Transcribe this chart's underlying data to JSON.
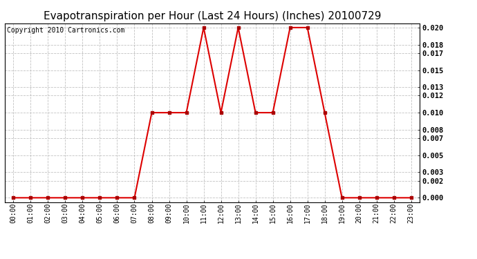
{
  "title": "Evapotranspiration per Hour (Last 24 Hours) (Inches) 20100729",
  "copyright": "Copyright 2010 Cartronics.com",
  "hours": [
    "00:00",
    "01:00",
    "02:00",
    "03:00",
    "04:00",
    "05:00",
    "06:00",
    "07:00",
    "08:00",
    "09:00",
    "10:00",
    "11:00",
    "12:00",
    "13:00",
    "14:00",
    "15:00",
    "16:00",
    "17:00",
    "18:00",
    "19:00",
    "20:00",
    "21:00",
    "22:00",
    "23:00"
  ],
  "values": [
    0.0,
    0.0,
    0.0,
    0.0,
    0.0,
    0.0,
    0.0,
    0.0,
    0.01,
    0.01,
    0.01,
    0.02,
    0.01,
    0.02,
    0.01,
    0.01,
    0.02,
    0.02,
    0.01,
    0.0,
    0.0,
    0.0,
    0.0,
    0.0
  ],
  "yticks": [
    0.0,
    0.002,
    0.003,
    0.005,
    0.007,
    0.008,
    0.01,
    0.012,
    0.013,
    0.015,
    0.017,
    0.018,
    0.02
  ],
  "ylim": [
    -0.0005,
    0.0205
  ],
  "xlim": [
    -0.5,
    23.5
  ],
  "line_color": "#dd0000",
  "marker_color": "#aa0000",
  "grid_color": "#bbbbbb",
  "bg_color": "#ffffff",
  "title_fontsize": 11,
  "copyright_fontsize": 7,
  "tick_fontsize": 7,
  "ytick_fontsize": 7.5
}
